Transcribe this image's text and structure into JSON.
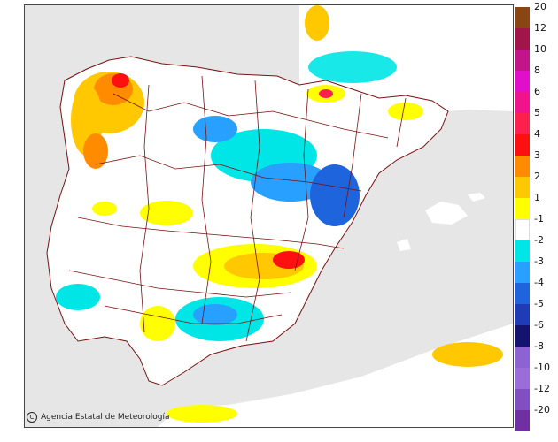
{
  "credit": {
    "symbol": "C",
    "text": "Agencia Estatal de Meteorología"
  },
  "legend": {
    "items": [
      {
        "label": "20",
        "color": "#8b4513"
      },
      {
        "label": "12",
        "color": "#a0154a"
      },
      {
        "label": "10",
        "color": "#c0168a"
      },
      {
        "label": "8",
        "color": "#e010c8"
      },
      {
        "label": "6",
        "color": "#f0148c"
      },
      {
        "label": "5",
        "color": "#ff2050"
      },
      {
        "label": "4",
        "color": "#ff1010"
      },
      {
        "label": "3",
        "color": "#ff8c00"
      },
      {
        "label": "2",
        "color": "#ffc800"
      },
      {
        "label": "1",
        "color": "#ffff00"
      },
      {
        "label": "-1",
        "color": "#ffffff"
      },
      {
        "label": "-2",
        "color": "#00e6e6"
      },
      {
        "label": "-3",
        "color": "#28a0ff"
      },
      {
        "label": "-4",
        "color": "#1e64dc"
      },
      {
        "label": "-5",
        "color": "#1e3cb4"
      },
      {
        "label": "-6",
        "color": "#14146e"
      },
      {
        "label": "-8",
        "color": "#8c64d2"
      },
      {
        "label": "-10",
        "color": "#9a6ed6"
      },
      {
        "label": "-12",
        "color": "#8050c0"
      },
      {
        "label": "-20",
        "color": "#7030a0"
      }
    ]
  }
}
